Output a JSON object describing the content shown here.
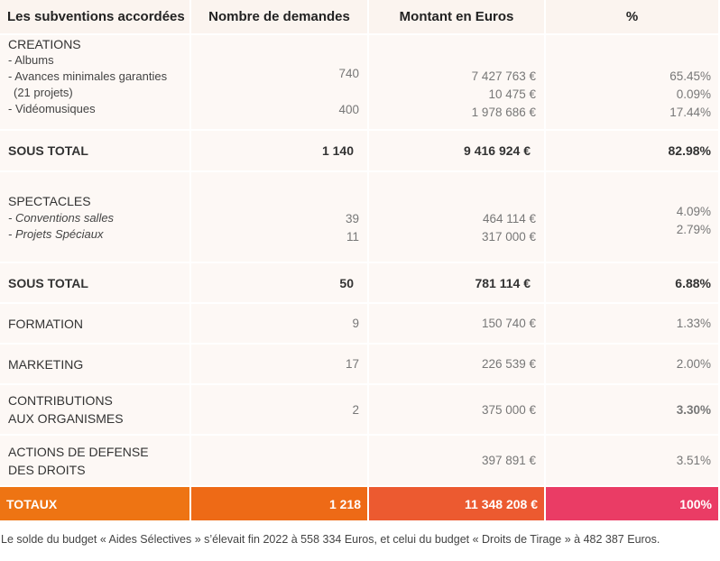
{
  "header": {
    "col1": "Les subventions accordées",
    "col2": "Nombre de demandes",
    "col3": "Montant en Euros",
    "col4": "%"
  },
  "creations": {
    "title": "CREATIONS",
    "items": [
      "- Albums",
      "- Avances minimales garanties",
      "(21 projets)",
      "- Vidéomusiques"
    ],
    "counts": [
      "740",
      "400"
    ],
    "amounts": [
      "7 427 763 €",
      "10 475 €",
      "1 978 686 €"
    ],
    "pcts": [
      "65.45%",
      "0.09%",
      "17.44%"
    ]
  },
  "subtotal1": {
    "label": "SOUS TOTAL",
    "count": "1 140",
    "amount": "9 416 924 €",
    "pct": "82.98%"
  },
  "spectacles": {
    "title": "SPECTACLES",
    "items": [
      "- Conventions salles",
      "- Projets Spéciaux"
    ],
    "counts": [
      "39",
      "11"
    ],
    "amounts": [
      "464 114 €",
      "317 000 €"
    ],
    "pcts": [
      "4.09%",
      "2.79%"
    ]
  },
  "subtotal2": {
    "label": "SOUS TOTAL",
    "count": "50",
    "amount": "781 114 €",
    "pct": "6.88%"
  },
  "formation": {
    "label": "FORMATION",
    "count": "9",
    "amount": "150 740 €",
    "pct": "1.33%"
  },
  "marketing": {
    "label": "MARKETING",
    "count": "17",
    "amount": "226 539 €",
    "pct": "2.00%"
  },
  "contributions": {
    "label1": "CONTRIBUTIONS",
    "label2": "AUX ORGANISMES",
    "count": "2",
    "amount": "375 000 €",
    "pct": "3.30%"
  },
  "defense": {
    "label1": "ACTIONS DE DEFENSE",
    "label2": "DES DROITS",
    "count": "",
    "amount": "397 891 €",
    "pct": "3.51%"
  },
  "totals": {
    "label": "TOTAUX",
    "count": "1 218",
    "amount": "11 348 208 €",
    "pct": "100%"
  },
  "footnote": "Le solde du budget « Aides Sélectives » s’élevait fin 2022 à 558 334 Euros, et celui du budget « Droits de Tirage » à 482 387 Euros.",
  "colors": {
    "header_bg": "#fbf4ef",
    "cell_bg": "#fdf8f5",
    "total_orange": "#ee7413",
    "total_pink": "#ea3c65"
  }
}
